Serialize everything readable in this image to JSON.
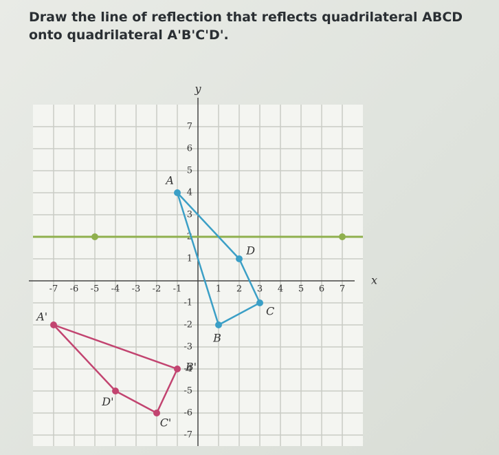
{
  "question": "Draw the line of reflection that reflects quadrilateral ABCD onto quadrilateral A'B'C'D'.",
  "graph": {
    "x_label": "x",
    "y_label": "y",
    "xlim": [
      -8,
      8
    ],
    "ylim": [
      -7.5,
      8
    ],
    "xticks": [
      -7,
      -6,
      -5,
      -4,
      -3,
      -2,
      -1,
      1,
      2,
      3,
      4,
      5,
      6,
      7
    ],
    "yticks": [
      -7,
      -6,
      -5,
      -4,
      -3,
      -2,
      -1,
      1,
      2,
      3,
      4,
      5,
      6,
      7
    ],
    "shapes": [
      {
        "color": "#3b9fc6",
        "vertices": [
          {
            "label": "A",
            "x": -1,
            "y": 4
          },
          {
            "label": "D",
            "x": 2,
            "y": 1
          },
          {
            "label": "C",
            "x": 3,
            "y": -1
          },
          {
            "label": "B",
            "x": 1,
            "y": -2
          }
        ]
      },
      {
        "color": "#c24470",
        "vertices": [
          {
            "label": "A'",
            "x": -7,
            "y": -2
          },
          {
            "label": "B'",
            "x": -1,
            "y": -4
          },
          {
            "label": "C'",
            "x": -2,
            "y": -6
          },
          {
            "label": "D'",
            "x": -4,
            "y": -5
          }
        ]
      }
    ],
    "line": {
      "color": "#8fb04e",
      "points": [
        {
          "x": -5,
          "y": 2
        },
        {
          "x": 7,
          "y": 2
        }
      ]
    }
  }
}
